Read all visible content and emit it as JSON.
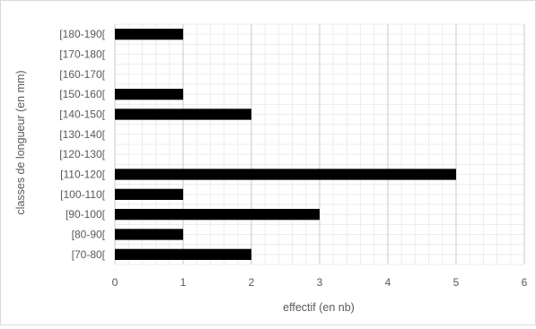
{
  "chart_data": {
    "type": "bar",
    "orientation": "horizontal",
    "title": "",
    "xlabel": "effectif (en nb)",
    "ylabel": "classes de longueur (en mm)",
    "xlim": [
      0,
      6
    ],
    "x_ticks": [
      "0",
      "1",
      "2",
      "3",
      "4",
      "5",
      "6"
    ],
    "grid": true,
    "categories": [
      "[70-80[",
      "[80-90[",
      "[90-100[",
      "[100-110[",
      "[110-120[",
      "[120-130[",
      "[130-140[",
      "[140-150[",
      "[150-160[",
      "[160-170[",
      "[170-180[",
      "[180-190["
    ],
    "values": [
      2,
      1,
      3,
      1,
      5,
      0,
      0,
      2,
      1,
      0,
      0,
      1
    ],
    "colors": {
      "bar": "#000000",
      "gridline": "#d9d9d9"
    }
  }
}
